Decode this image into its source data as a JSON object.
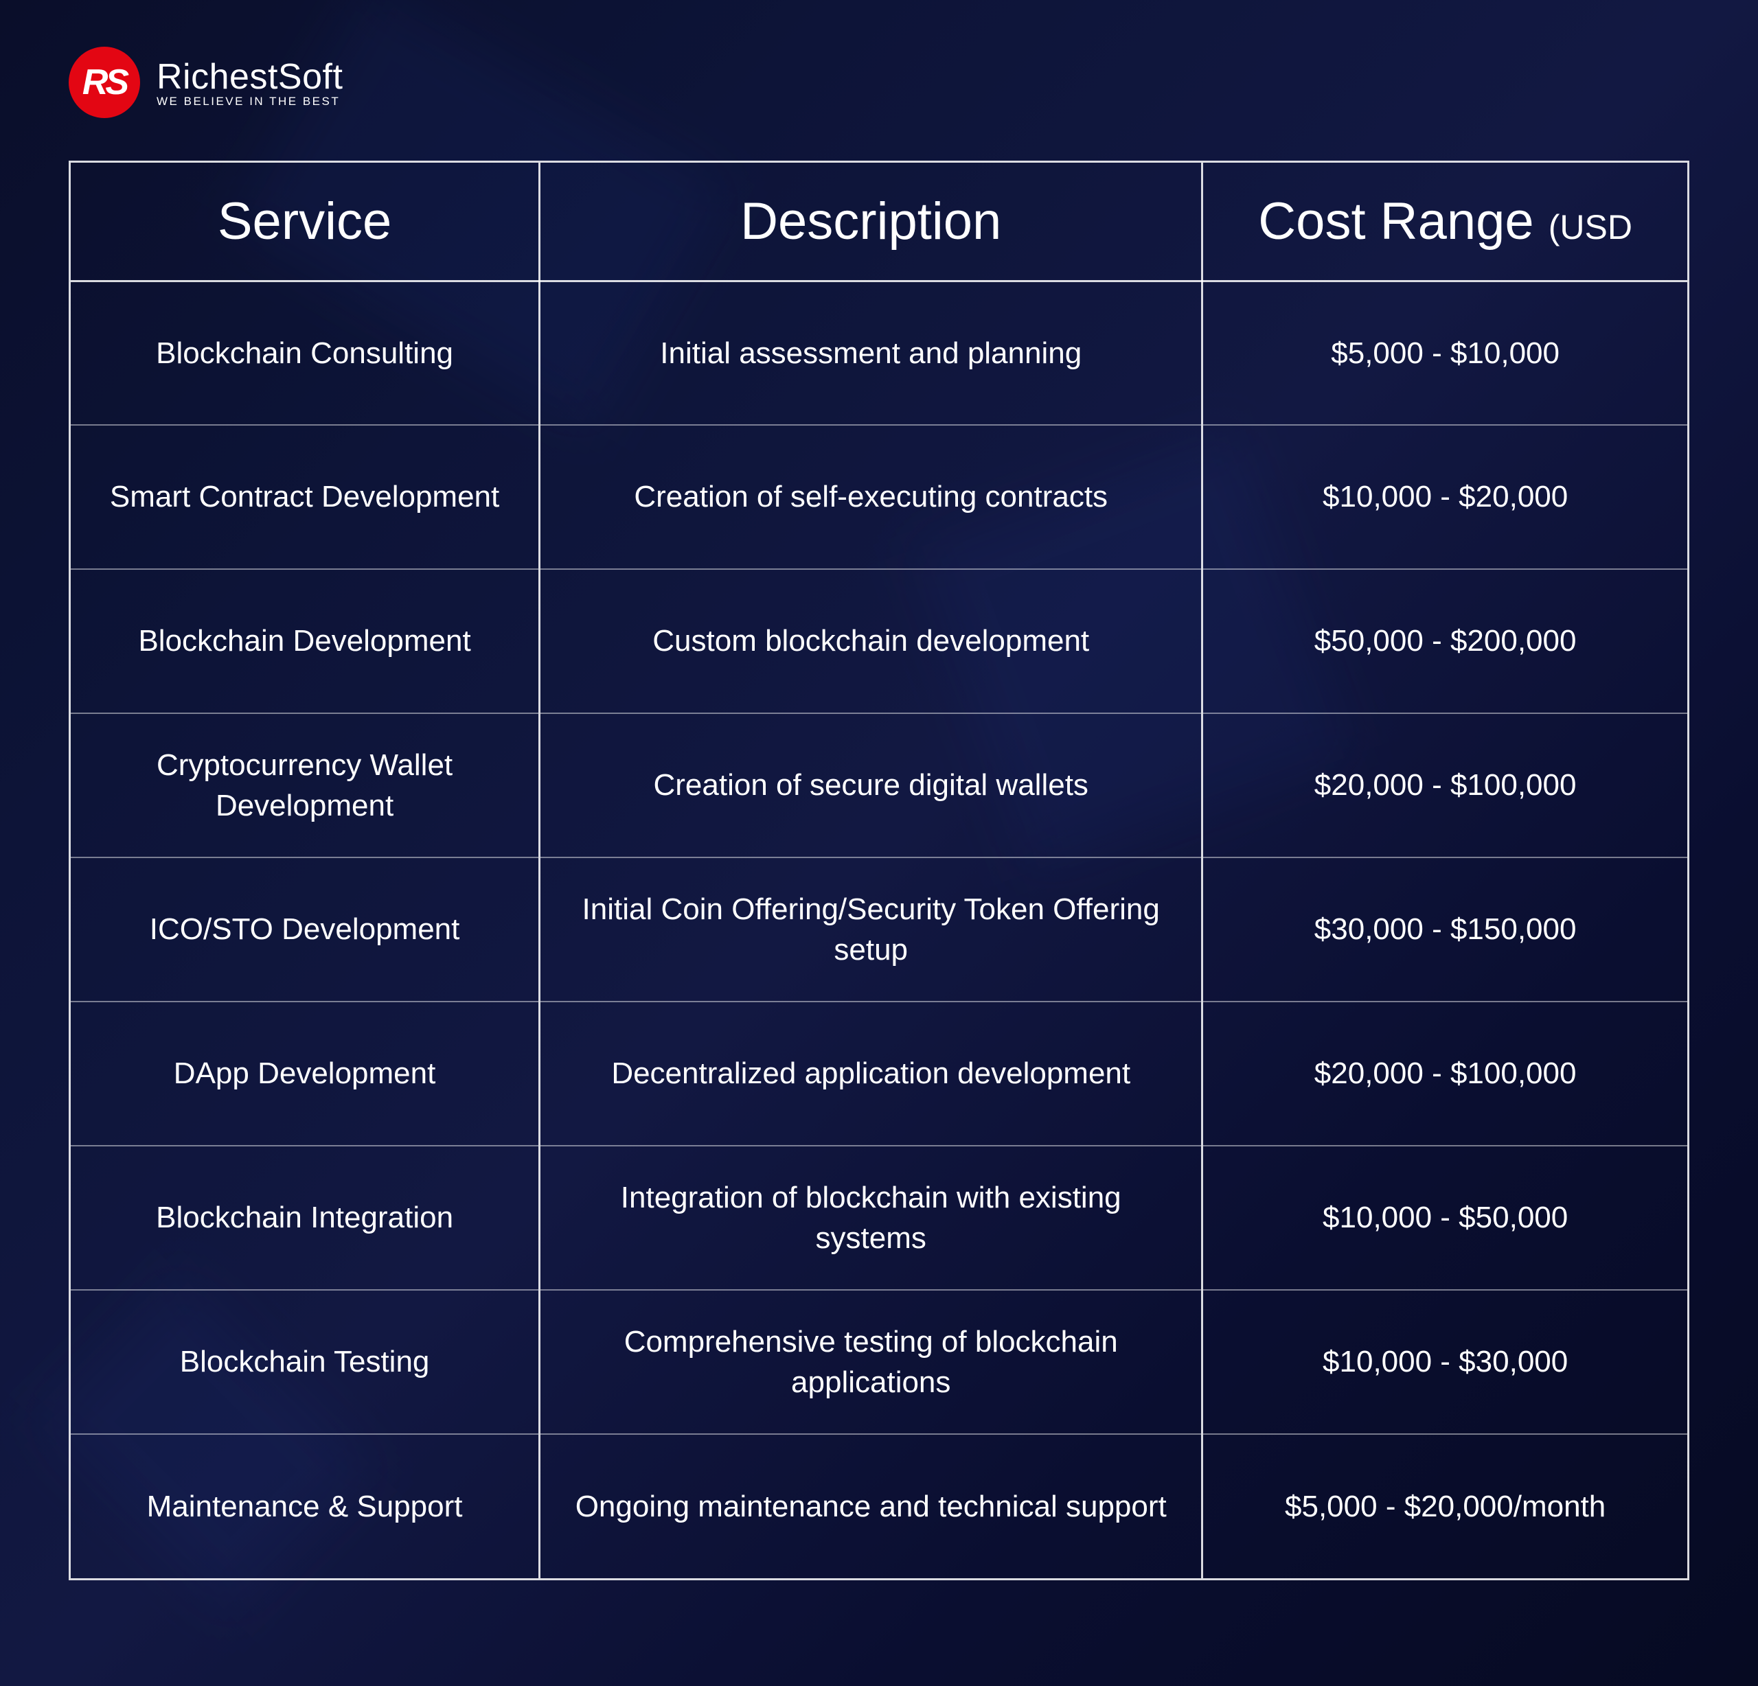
{
  "brand": {
    "logo_initials": "RS",
    "name": "RichestSoft",
    "tagline": "WE BELIEVE IN THE BEST",
    "accent_color": "#e30613"
  },
  "background": {
    "gradient_colors": [
      "#0a0e2a",
      "#0d1438",
      "#121842",
      "#0a0e30",
      "#060a22"
    ]
  },
  "table": {
    "border_color": "rgba(255,255,255,0.85)",
    "row_divider_color": "rgba(255,255,255,0.45)",
    "text_color": "#ffffff",
    "header_fontsize_pt": 57,
    "cell_fontsize_pt": 33,
    "columns": [
      {
        "key": "service",
        "header": "Service",
        "width_pct": 29
      },
      {
        "key": "description",
        "header": "Description",
        "width_pct": 41
      },
      {
        "key": "cost",
        "header": "Cost Range",
        "header_suffix": "(USD",
        "width_pct": 30
      }
    ],
    "rows": [
      {
        "service": "Blockchain Consulting",
        "description": "Initial assessment and planning",
        "cost": "$5,000 - $10,000"
      },
      {
        "service": "Smart Contract Development",
        "description": "Creation of self-executing contracts",
        "cost": "$10,000 - $20,000"
      },
      {
        "service": "Blockchain Development",
        "description": "Custom blockchain development",
        "cost": "$50,000 - $200,000"
      },
      {
        "service": "Cryptocurrency Wallet Development",
        "description": "Creation of secure digital wallets",
        "cost": "$20,000 - $100,000"
      },
      {
        "service": "ICO/STO Development",
        "description": "Initial Coin Offering/Security Token Offering setup",
        "cost": "$30,000 - $150,000"
      },
      {
        "service": "DApp Development",
        "description": "Decentralized application development",
        "cost": "$20,000 - $100,000"
      },
      {
        "service": "Blockchain Integration",
        "description": "Integration of blockchain with existing systems",
        "cost": "$10,000 - $50,000"
      },
      {
        "service": "Blockchain Testing",
        "description": "Comprehensive testing of blockchain applications",
        "cost": "$10,000 - $30,000"
      },
      {
        "service": "Maintenance & Support",
        "description": "Ongoing maintenance and technical support",
        "cost": "$5,000 - $20,000/month"
      }
    ]
  }
}
